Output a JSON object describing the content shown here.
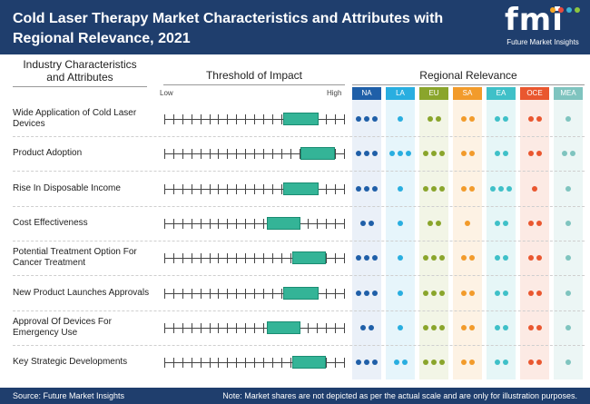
{
  "header": {
    "title": "Cold Laser Therapy Market Characteristics and Attributes with Regional Relevance, 2021",
    "logo_text": "fmi",
    "logo_subtitle": "Future Market Insights"
  },
  "columns": {
    "left": "Industry Characteristics and Attributes",
    "middle": "Threshold of Impact",
    "right": "Regional Relevance",
    "low": "Low",
    "high": "High"
  },
  "colors": {
    "header_bg": "#1f3e6d",
    "box": "#34b497",
    "logo_dots": [
      "#f5a623",
      "#e84b3c",
      "#3bb3d6",
      "#8dc63f"
    ]
  },
  "chart_data": {
    "type": "table",
    "title": "Cold Laser Therapy Market Characteristics and Attributes with Regional Relevance, 2021",
    "scale_ticks": 21,
    "regions": [
      {
        "code": "NA",
        "color": "#1f5fa8",
        "bg": "#eaf0f8"
      },
      {
        "code": "LA",
        "color": "#29aee0",
        "bg": "#e6f5fb"
      },
      {
        "code": "EU",
        "color": "#8aa52c",
        "bg": "#f2f5e6"
      },
      {
        "code": "SA",
        "color": "#f29b2b",
        "bg": "#fdf2e4"
      },
      {
        "code": "EA",
        "color": "#3fc0c8",
        "bg": "#e6f6f7"
      },
      {
        "code": "OCE",
        "color": "#e9572f",
        "bg": "#fceae4"
      },
      {
        "code": "MEA",
        "color": "#7fc4bf",
        "bg": "#ecf6f5"
      }
    ],
    "rows": [
      {
        "label": "Wide Application of Cold Laser Devices",
        "impact_start": 0.66,
        "impact_end": 0.86,
        "regions": [
          3,
          1,
          2,
          2,
          2,
          2,
          1
        ]
      },
      {
        "label": "Product Adoption",
        "impact_start": 0.76,
        "impact_end": 0.95,
        "regions": [
          3,
          3,
          3,
          2,
          2,
          2,
          2
        ]
      },
      {
        "label": "Rise In Disposable Income",
        "impact_start": 0.66,
        "impact_end": 0.86,
        "regions": [
          3,
          1,
          3,
          2,
          3,
          1,
          1
        ]
      },
      {
        "label": "Cost Effectiveness",
        "impact_start": 0.57,
        "impact_end": 0.76,
        "regions": [
          2,
          1,
          2,
          1,
          2,
          2,
          1
        ]
      },
      {
        "label": "Potential Treatment Option For Cancer Treatment",
        "impact_start": 0.71,
        "impact_end": 0.9,
        "regions": [
          3,
          1,
          3,
          2,
          2,
          2,
          1
        ]
      },
      {
        "label": "New Product Launches Approvals",
        "impact_start": 0.66,
        "impact_end": 0.86,
        "regions": [
          3,
          1,
          3,
          2,
          2,
          2,
          1
        ]
      },
      {
        "label": "Approval Of Devices For Emergency Use",
        "impact_start": 0.57,
        "impact_end": 0.76,
        "regions": [
          2,
          1,
          3,
          2,
          2,
          2,
          1
        ]
      },
      {
        "label": "Key Strategic Developments",
        "impact_start": 0.71,
        "impact_end": 0.9,
        "regions": [
          3,
          2,
          3,
          2,
          2,
          2,
          1
        ]
      }
    ]
  },
  "footer": {
    "source": "Source: Future Market Insights",
    "note": "Note: Market shares are not depicted as per the actual scale and are only for illustration purposes."
  }
}
